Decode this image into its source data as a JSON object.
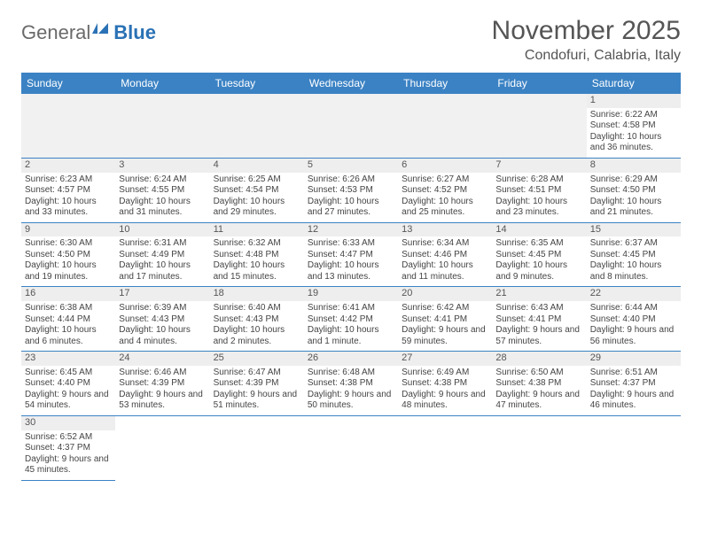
{
  "logo": {
    "text1": "General",
    "text2": "Blue"
  },
  "title": "November 2025",
  "location": "Condofuri, Calabria, Italy",
  "colors": {
    "header_bg": "#3b82c4",
    "header_fg": "#ffffff",
    "daynum_bg": "#eeeeee",
    "border": "#3b82c4",
    "blank_bg": "#f1f1f1",
    "title_color": "#555555"
  },
  "day_headers": [
    "Sunday",
    "Monday",
    "Tuesday",
    "Wednesday",
    "Thursday",
    "Friday",
    "Saturday"
  ],
  "weeks": [
    [
      {
        "blank": true
      },
      {
        "blank": true
      },
      {
        "blank": true
      },
      {
        "blank": true
      },
      {
        "blank": true
      },
      {
        "blank": true
      },
      {
        "day": "1",
        "sunrise": "Sunrise: 6:22 AM",
        "sunset": "Sunset: 4:58 PM",
        "daylight": "Daylight: 10 hours and 36 minutes."
      }
    ],
    [
      {
        "day": "2",
        "sunrise": "Sunrise: 6:23 AM",
        "sunset": "Sunset: 4:57 PM",
        "daylight": "Daylight: 10 hours and 33 minutes."
      },
      {
        "day": "3",
        "sunrise": "Sunrise: 6:24 AM",
        "sunset": "Sunset: 4:55 PM",
        "daylight": "Daylight: 10 hours and 31 minutes."
      },
      {
        "day": "4",
        "sunrise": "Sunrise: 6:25 AM",
        "sunset": "Sunset: 4:54 PM",
        "daylight": "Daylight: 10 hours and 29 minutes."
      },
      {
        "day": "5",
        "sunrise": "Sunrise: 6:26 AM",
        "sunset": "Sunset: 4:53 PM",
        "daylight": "Daylight: 10 hours and 27 minutes."
      },
      {
        "day": "6",
        "sunrise": "Sunrise: 6:27 AM",
        "sunset": "Sunset: 4:52 PM",
        "daylight": "Daylight: 10 hours and 25 minutes."
      },
      {
        "day": "7",
        "sunrise": "Sunrise: 6:28 AM",
        "sunset": "Sunset: 4:51 PM",
        "daylight": "Daylight: 10 hours and 23 minutes."
      },
      {
        "day": "8",
        "sunrise": "Sunrise: 6:29 AM",
        "sunset": "Sunset: 4:50 PM",
        "daylight": "Daylight: 10 hours and 21 minutes."
      }
    ],
    [
      {
        "day": "9",
        "sunrise": "Sunrise: 6:30 AM",
        "sunset": "Sunset: 4:50 PM",
        "daylight": "Daylight: 10 hours and 19 minutes."
      },
      {
        "day": "10",
        "sunrise": "Sunrise: 6:31 AM",
        "sunset": "Sunset: 4:49 PM",
        "daylight": "Daylight: 10 hours and 17 minutes."
      },
      {
        "day": "11",
        "sunrise": "Sunrise: 6:32 AM",
        "sunset": "Sunset: 4:48 PM",
        "daylight": "Daylight: 10 hours and 15 minutes."
      },
      {
        "day": "12",
        "sunrise": "Sunrise: 6:33 AM",
        "sunset": "Sunset: 4:47 PM",
        "daylight": "Daylight: 10 hours and 13 minutes."
      },
      {
        "day": "13",
        "sunrise": "Sunrise: 6:34 AM",
        "sunset": "Sunset: 4:46 PM",
        "daylight": "Daylight: 10 hours and 11 minutes."
      },
      {
        "day": "14",
        "sunrise": "Sunrise: 6:35 AM",
        "sunset": "Sunset: 4:45 PM",
        "daylight": "Daylight: 10 hours and 9 minutes."
      },
      {
        "day": "15",
        "sunrise": "Sunrise: 6:37 AM",
        "sunset": "Sunset: 4:45 PM",
        "daylight": "Daylight: 10 hours and 8 minutes."
      }
    ],
    [
      {
        "day": "16",
        "sunrise": "Sunrise: 6:38 AM",
        "sunset": "Sunset: 4:44 PM",
        "daylight": "Daylight: 10 hours and 6 minutes."
      },
      {
        "day": "17",
        "sunrise": "Sunrise: 6:39 AM",
        "sunset": "Sunset: 4:43 PM",
        "daylight": "Daylight: 10 hours and 4 minutes."
      },
      {
        "day": "18",
        "sunrise": "Sunrise: 6:40 AM",
        "sunset": "Sunset: 4:43 PM",
        "daylight": "Daylight: 10 hours and 2 minutes."
      },
      {
        "day": "19",
        "sunrise": "Sunrise: 6:41 AM",
        "sunset": "Sunset: 4:42 PM",
        "daylight": "Daylight: 10 hours and 1 minute."
      },
      {
        "day": "20",
        "sunrise": "Sunrise: 6:42 AM",
        "sunset": "Sunset: 4:41 PM",
        "daylight": "Daylight: 9 hours and 59 minutes."
      },
      {
        "day": "21",
        "sunrise": "Sunrise: 6:43 AM",
        "sunset": "Sunset: 4:41 PM",
        "daylight": "Daylight: 9 hours and 57 minutes."
      },
      {
        "day": "22",
        "sunrise": "Sunrise: 6:44 AM",
        "sunset": "Sunset: 4:40 PM",
        "daylight": "Daylight: 9 hours and 56 minutes."
      }
    ],
    [
      {
        "day": "23",
        "sunrise": "Sunrise: 6:45 AM",
        "sunset": "Sunset: 4:40 PM",
        "daylight": "Daylight: 9 hours and 54 minutes."
      },
      {
        "day": "24",
        "sunrise": "Sunrise: 6:46 AM",
        "sunset": "Sunset: 4:39 PM",
        "daylight": "Daylight: 9 hours and 53 minutes."
      },
      {
        "day": "25",
        "sunrise": "Sunrise: 6:47 AM",
        "sunset": "Sunset: 4:39 PM",
        "daylight": "Daylight: 9 hours and 51 minutes."
      },
      {
        "day": "26",
        "sunrise": "Sunrise: 6:48 AM",
        "sunset": "Sunset: 4:38 PM",
        "daylight": "Daylight: 9 hours and 50 minutes."
      },
      {
        "day": "27",
        "sunrise": "Sunrise: 6:49 AM",
        "sunset": "Sunset: 4:38 PM",
        "daylight": "Daylight: 9 hours and 48 minutes."
      },
      {
        "day": "28",
        "sunrise": "Sunrise: 6:50 AM",
        "sunset": "Sunset: 4:38 PM",
        "daylight": "Daylight: 9 hours and 47 minutes."
      },
      {
        "day": "29",
        "sunrise": "Sunrise: 6:51 AM",
        "sunset": "Sunset: 4:37 PM",
        "daylight": "Daylight: 9 hours and 46 minutes."
      }
    ],
    [
      {
        "day": "30",
        "sunrise": "Sunrise: 6:52 AM",
        "sunset": "Sunset: 4:37 PM",
        "daylight": "Daylight: 9 hours and 45 minutes."
      },
      {
        "blank": true
      },
      {
        "blank": true
      },
      {
        "blank": true
      },
      {
        "blank": true
      },
      {
        "blank": true
      },
      {
        "blank": true
      }
    ]
  ]
}
